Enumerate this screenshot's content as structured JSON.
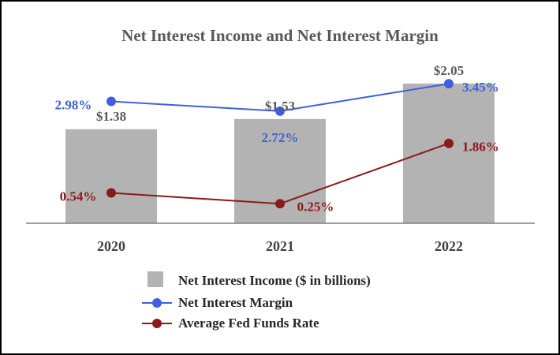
{
  "chart_data": {
    "type": "bar",
    "title": "Net Interest Income and Net Interest Margin",
    "categories": [
      "2020",
      "2021",
      "2022"
    ],
    "series": [
      {
        "name": "Net Interest Income ($ in billions)",
        "kind": "bar",
        "values": [
          1.38,
          1.53,
          2.05
        ],
        "labels": [
          "$1.38",
          "$1.53",
          "$2.05"
        ],
        "color": "#b3b3b3"
      },
      {
        "name": "Net Interest Margin",
        "kind": "line",
        "values": [
          2.98,
          2.72,
          3.45
        ],
        "labels": [
          "2.98%",
          "2.72%",
          "3.45%"
        ],
        "color": "#3f5fe0"
      },
      {
        "name": "Average Fed Funds Rate",
        "kind": "line",
        "values": [
          0.54,
          0.25,
          1.86
        ],
        "labels": [
          "0.54%",
          "0.25%",
          "1.86%"
        ],
        "color": "#8b1a1a"
      }
    ],
    "ylim_bar": [
      0,
      2.35
    ],
    "ylim_line": [
      -0.27,
      4.0
    ],
    "legend": "bottom",
    "grid": false
  }
}
